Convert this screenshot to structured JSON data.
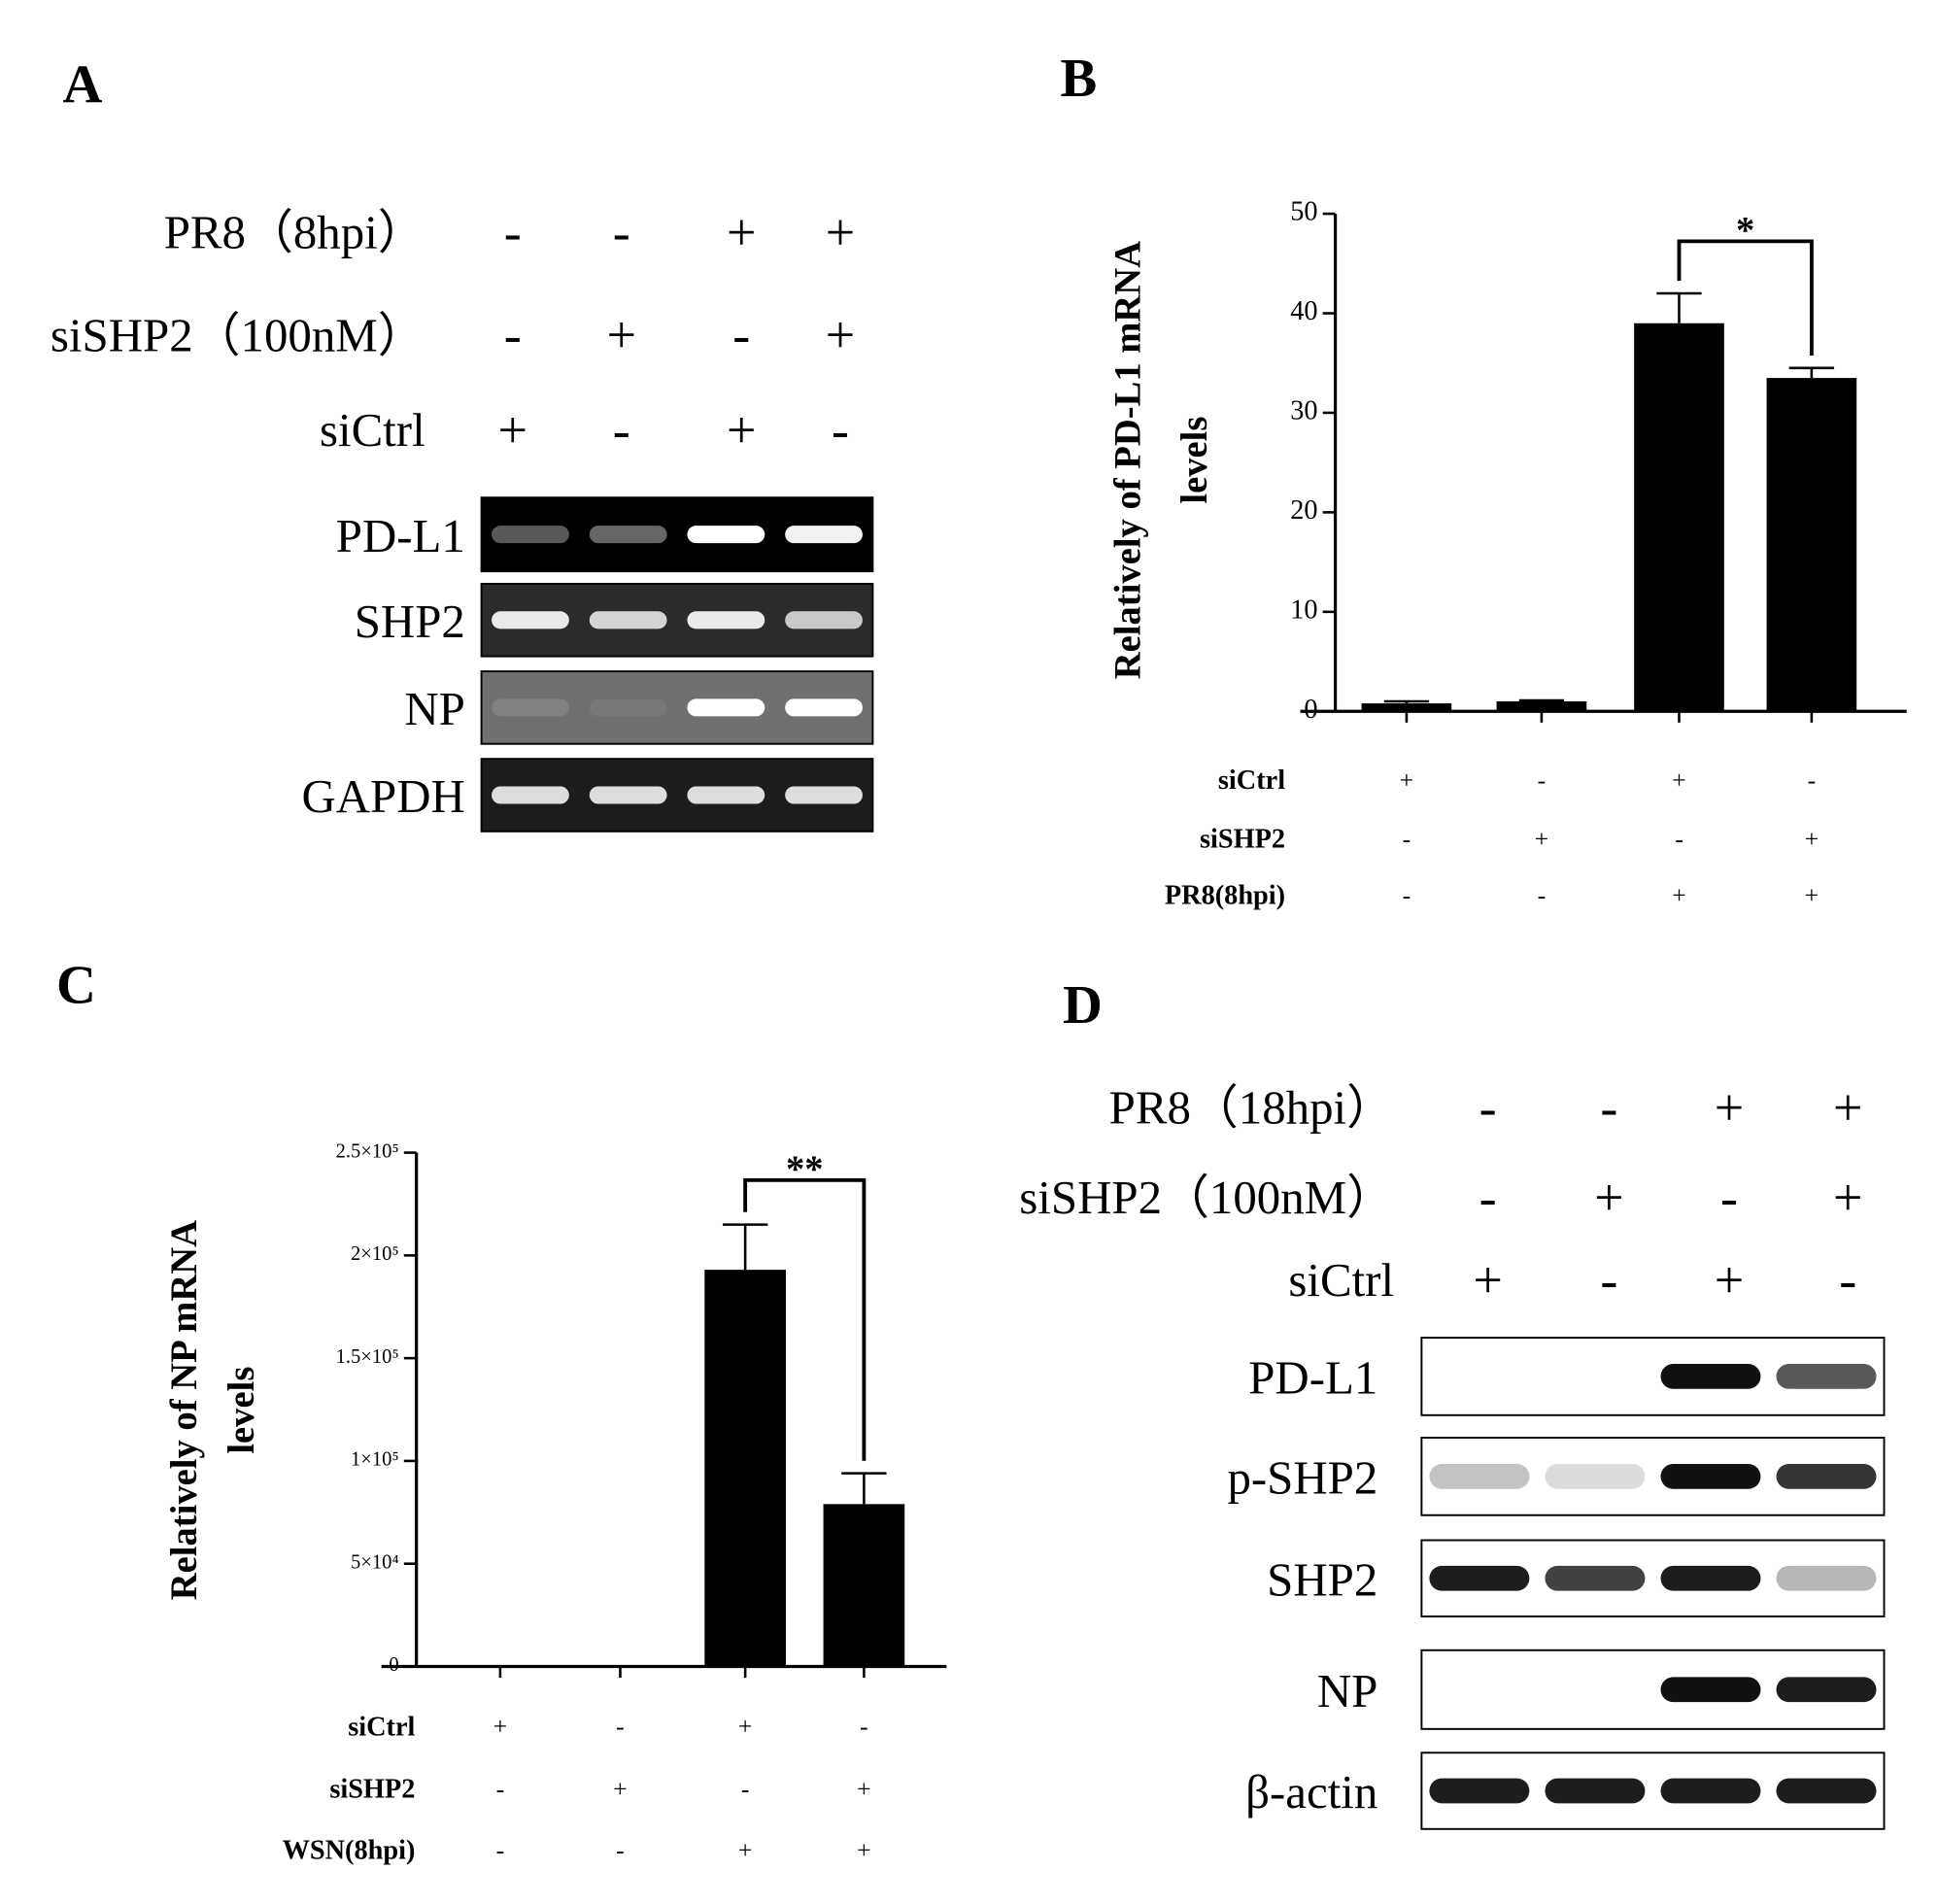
{
  "panels": [
    {
      "label": "A",
      "gel": {
        "conditions": [
          {
            "name": "PR8（8hpi）",
            "signs": [
              "-",
              "-",
              "+",
              "+"
            ]
          },
          {
            "name": "siSHP2（100nM）",
            "signs": [
              "-",
              "+",
              "-",
              "+"
            ]
          },
          {
            "name": "siCtrl",
            "signs": [
              "+",
              "-",
              "+",
              "-"
            ]
          }
        ],
        "bands": [
          "PD-L1",
          "SHP2",
          "NP",
          "GAPDH"
        ]
      }
    },
    {
      "label": "B",
      "chart_data": {
        "type": "bar",
        "ylabel": [
          "Relatively of PD-L1 mRNA",
          "levels"
        ],
        "categories": [
          null,
          null,
          null,
          null
        ],
        "values": [
          0.8,
          1.0,
          39,
          33.5
        ],
        "errors": [
          0.2,
          0.1,
          3,
          1
        ],
        "color": "#000000",
        "ylim": [
          0,
          50
        ],
        "yticks": [
          0,
          10,
          20,
          30,
          40,
          50
        ],
        "conditions": [
          {
            "name": "siCtrl",
            "signs": [
              "+",
              "-",
              "+",
              "-"
            ]
          },
          {
            "name": "siSHP2",
            "signs": [
              "-",
              "+",
              "-",
              "+"
            ]
          },
          {
            "name": "PR8(8hpi)",
            "signs": [
              "-",
              "-",
              "+",
              "+"
            ]
          }
        ],
        "significance": {
          "label": "*",
          "between": [
            2,
            3
          ]
        }
      }
    },
    {
      "label": "C",
      "chart_data": {
        "type": "bar",
        "ylabel": [
          "Relatively of NP mRNA",
          "levels"
        ],
        "categories": [
          null,
          null,
          null,
          null
        ],
        "values": [
          0,
          0,
          193000,
          79000
        ],
        "errors": [
          0,
          0,
          22000,
          15000
        ],
        "color": "#000000",
        "ylim": [
          0,
          250000
        ],
        "yticks": [
          0,
          {
            "value": 50000,
            "label": "5×10⁴"
          },
          {
            "value": 100000,
            "label": "1×10⁵"
          },
          {
            "value": 150000,
            "label": "1.5×10⁵"
          },
          {
            "value": 200000,
            "label": "2×10⁵"
          },
          {
            "value": 250000,
            "label": "2.5×10⁵"
          }
        ],
        "conditions": [
          {
            "name": "siCtrl",
            "signs": [
              "+",
              "-",
              "+",
              "-"
            ]
          },
          {
            "name": "siSHP2",
            "signs": [
              "-",
              "+",
              "-",
              "+"
            ]
          },
          {
            "name": "WSN(8hpi)",
            "signs": [
              "-",
              "-",
              "+",
              "+"
            ]
          }
        ],
        "significance": {
          "label": "**",
          "between": [
            2,
            3
          ]
        }
      }
    },
    {
      "label": "D",
      "gel": {
        "conditions": [
          {
            "name": "PR8（18hpi）",
            "signs": [
              "-",
              "-",
              "+",
              "+"
            ]
          },
          {
            "name": "siSHP2（100nM）",
            "signs": [
              "-",
              "+",
              "-",
              "+"
            ]
          },
          {
            "name": "siCtrl",
            "signs": [
              "+",
              "-",
              "+",
              "-"
            ]
          }
        ],
        "bands": [
          "PD-L1",
          "p-SHP2",
          "SHP2",
          "NP",
          "β-actin"
        ]
      }
    }
  ]
}
